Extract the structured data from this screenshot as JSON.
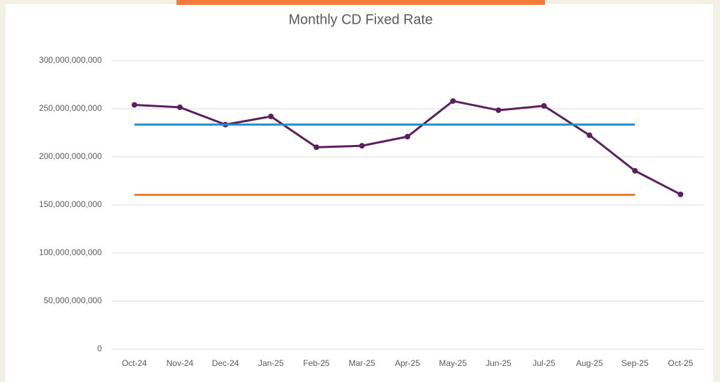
{
  "chart_data": {
    "type": "line",
    "title": "Monthly CD Fixed Rate",
    "categories": [
      "Oct-24",
      "Nov-24",
      "Dec-24",
      "Jan-25",
      "Feb-25",
      "Mar-25",
      "Apr-25",
      "May-25",
      "Jun-25",
      "Jul-25",
      "Aug-25",
      "Sep-25",
      "Oct-25"
    ],
    "series": [
      {
        "color": "#5b1f5e",
        "markers": true,
        "values": [
          254000000000,
          251500000000,
          233500000000,
          242000000000,
          210000000000,
          211500000000,
          221000000000,
          258000000000,
          248500000000,
          253000000000,
          222500000000,
          185500000000,
          161000000000
        ]
      },
      {
        "color": "#1a8fd0",
        "markers": false,
        "values": [
          233500000000,
          233500000000,
          233500000000,
          233500000000,
          233500000000,
          233500000000,
          233500000000,
          233500000000,
          233500000000,
          233500000000,
          233500000000,
          233500000000,
          null
        ]
      },
      {
        "color": "#ed7d31",
        "markers": false,
        "values": [
          160500000000,
          160500000000,
          160500000000,
          160500000000,
          160500000000,
          160500000000,
          160500000000,
          160500000000,
          160500000000,
          160500000000,
          160500000000,
          160500000000,
          null
        ]
      }
    ],
    "ylim": [
      0,
      300000000000
    ],
    "yticks": [
      0,
      {
        "value": 50000000000,
        "label": "50,000,000,000"
      },
      {
        "value": 100000000000,
        "label": "100,000,000,000"
      },
      {
        "value": 150000000000,
        "label": "150,000,000,000"
      },
      {
        "value": 200000000000,
        "label": "200,000,000,000"
      },
      {
        "value": 250000000000,
        "label": "250,000,000,000"
      },
      {
        "value": 300000000000,
        "label": "300,000,000,000"
      }
    ],
    "grid": true
  }
}
